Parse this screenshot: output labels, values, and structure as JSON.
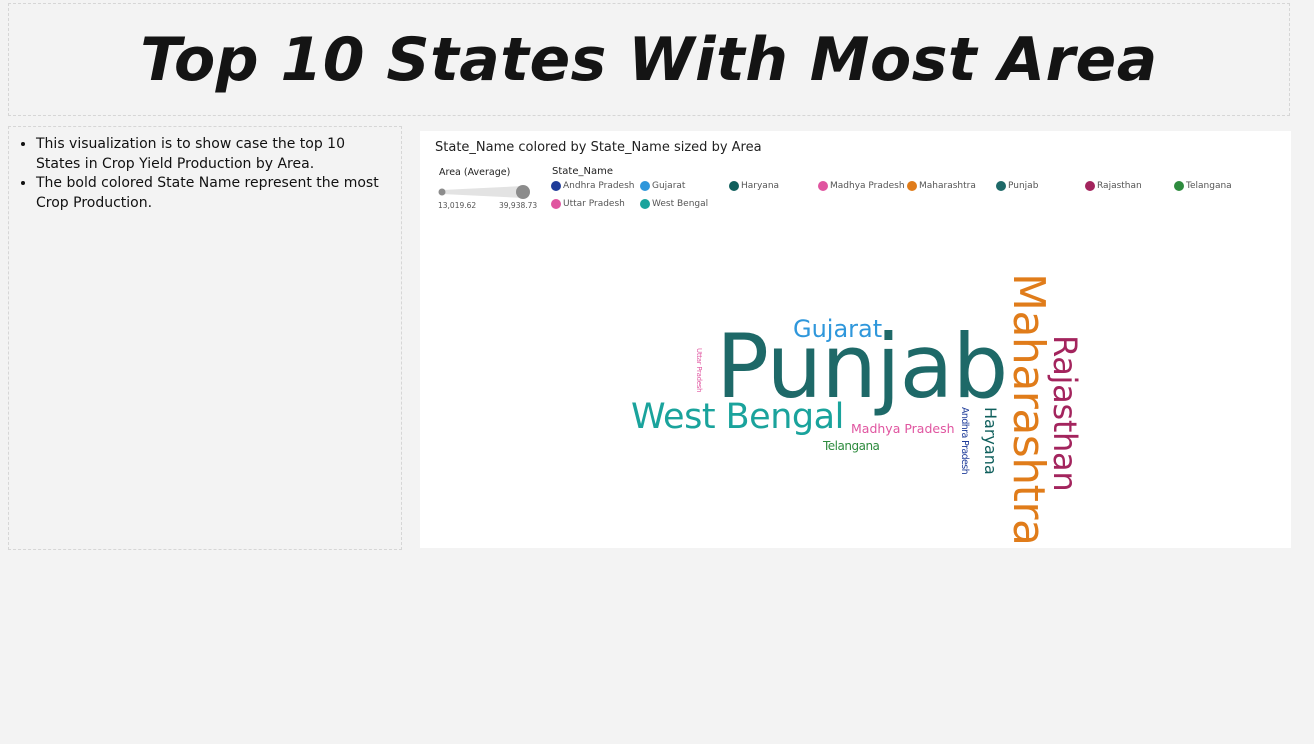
{
  "title": "Top 10 States With Most Area",
  "notes": [
    "This visualization is to show case the top 10 States in Crop Yield Production by Area.",
    "The bold colored State Name represent the most Crop Production."
  ],
  "visual": {
    "title": "State_Name colored by State_Name sized by Area",
    "size_legend": {
      "label": "Area (Average)",
      "min_label": "13,019.62",
      "max_label": "39,938.73"
    },
    "color_legend": {
      "title": "State_Name",
      "items": [
        {
          "name": "Andhra Pradesh",
          "color": "#1f3c99"
        },
        {
          "name": "Gujarat",
          "color": "#2f97db"
        },
        {
          "name": "Haryana",
          "color": "#0f5f5c"
        },
        {
          "name": "Madhya Pradesh",
          "color": "#e055a0"
        },
        {
          "name": "Maharashtra",
          "color": "#e07c1a"
        },
        {
          "name": "Punjab",
          "color": "#1e6968"
        },
        {
          "name": "Rajasthan",
          "color": "#a3245d"
        },
        {
          "name": "Telangana",
          "color": "#2e8b3e"
        },
        {
          "name": "Uttar Pradesh",
          "color": "#e055a0"
        },
        {
          "name": "West Bengal",
          "color": "#1aa39c"
        }
      ]
    },
    "words": {
      "punjab": "Punjab",
      "maharashtra": "Maharashtra",
      "rajasthan": "Rajasthan",
      "west_bengal": "West Bengal",
      "gujarat": "Gujarat",
      "haryana": "Haryana",
      "madhya_pradesh": "Madhya Pradesh",
      "telangana": "Telangana",
      "andhra_pradesh": "Andhra Pradesh",
      "uttar_pradesh": "Uttar Pradesh"
    }
  }
}
